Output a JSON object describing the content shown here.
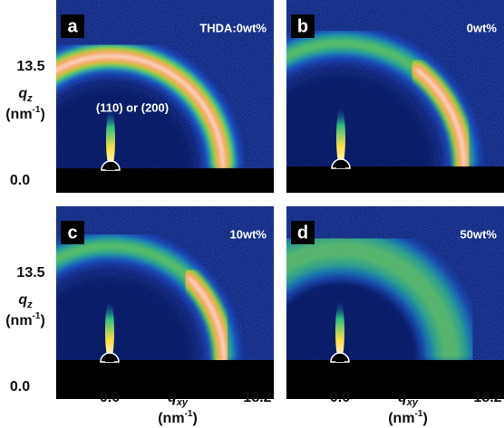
{
  "panels": [
    {
      "letter": "a",
      "label": "THDA:0wt%",
      "annotation": "(110) or (200)"
    },
    {
      "letter": "b",
      "label": "0wt%"
    },
    {
      "letter": "c",
      "label": "10wt%"
    },
    {
      "letter": "d",
      "label": "50wt%"
    }
  ],
  "y_axis": {
    "top": "13.5",
    "bottom": "0.0",
    "symbol": "q",
    "sub": "z",
    "unit_open": "(nm",
    "unit_sup": "-1",
    "unit_close": ")"
  },
  "x_axis": {
    "left": "0.0",
    "right": "18.2",
    "symbol": "q",
    "sub": "xy",
    "unit_open": "(nm",
    "unit_sup": "-1",
    "unit_close": ")"
  }
}
